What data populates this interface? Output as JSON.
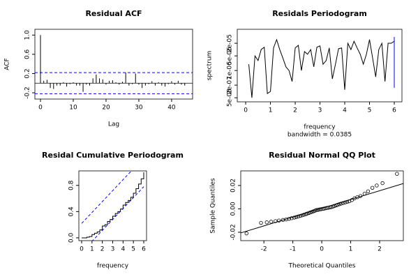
{
  "chart_data": [
    {
      "type": "bar",
      "title": "Residual ACF",
      "x_label": "Lag",
      "y_label": "ACF",
      "x": [
        0,
        1,
        2,
        3,
        4,
        5,
        6,
        7,
        8,
        9,
        10,
        11,
        12,
        13,
        14,
        15,
        16,
        17,
        18,
        19,
        20,
        21,
        22,
        23,
        24,
        25,
        26,
        27,
        28,
        29,
        30,
        31,
        32,
        33,
        34,
        35,
        36,
        37,
        38,
        39,
        40,
        41,
        42,
        43,
        44
      ],
      "values": [
        1,
        0.05,
        0.07,
        -0.1,
        -0.12,
        -0.05,
        -0.05,
        0.02,
        -0.07,
        -0.02,
        0.02,
        -0.05,
        -0.05,
        -0.18,
        -0.03,
        -0.05,
        0.1,
        0.18,
        0.1,
        0.08,
        -0.03,
        0.05,
        0.06,
        0.02,
        -0.03,
        0.03,
        0.22,
        -0.05,
        -0.02,
        0.2,
        -0.03,
        -0.1,
        -0.05,
        -0.02,
        0.04,
        -0.05,
        0.02,
        -0.05,
        -0.07,
        -0.02,
        0.04,
        -0.03,
        0.05,
        -0.03,
        -0.05
      ],
      "color": "#000000",
      "ci": [
        0.22,
        -0.22
      ],
      "ci_color": "#0000ff",
      "xlim": [
        -1.7,
        46.4
      ],
      "ylim": [
        -0.33,
        1.12
      ],
      "xticks": [
        0,
        10,
        20,
        30,
        40
      ],
      "yticks": [
        -0.2,
        0.2,
        0.6,
        {
          "value": 1,
          "label": "1.0"
        }
      ]
    },
    {
      "type": "line",
      "title": "Residals Periodogram",
      "x_label": "frequency",
      "subtitle": "bandwidth = 0.0385",
      "y_label": "spectrum",
      "log": true,
      "x": [
        0.125,
        0.25,
        0.375,
        0.5,
        0.625,
        0.75,
        0.875,
        1,
        1.125,
        1.25,
        1.375,
        1.5,
        1.625,
        1.75,
        1.875,
        2,
        2.125,
        2.25,
        2.375,
        2.5,
        2.625,
        2.75,
        2.875,
        3,
        3.125,
        3.25,
        3.375,
        3.5,
        3.625,
        3.75,
        3.875,
        4,
        4.125,
        4.25,
        4.375,
        4.5,
        4.625,
        4.75,
        4.875,
        5,
        5.125,
        5.25,
        5.375,
        5.5,
        5.625,
        5.75,
        5.875,
        6
      ],
      "values": [
        2e-06,
        5e-08,
        5e-06,
        3e-06,
        1e-05,
        1.3e-05,
        8e-08,
        1e-07,
        1.2e-05,
        3e-05,
        1e-05,
        4e-06,
        1.5e-06,
        1e-06,
        3e-07,
        1.2e-05,
        1.6e-05,
        1e-06,
        8e-06,
        6e-06,
        1e-05,
        1.5e-06,
        1.3e-05,
        1.5e-05,
        2e-06,
        3e-06,
        1.2e-05,
        4e-07,
        2e-06,
        1.1e-05,
        1.2e-05,
        1.2e-07,
        2e-05,
        1e-05,
        2.5e-05,
        1.2e-05,
        6e-06,
        2e-06,
        6e-06,
        3e-05,
        4e-06,
        5e-07,
        1e-05,
        2e-05,
        3e-07,
        2e-05,
        2e-05,
        2.5e-05
      ],
      "color": "#000000",
      "ci_bar": {
        "x": 6,
        "y": [
          1.5e-07,
          4e-05
        ]
      },
      "ci_color": "#0000ff",
      "xlim": [
        -0.34,
        6.31
      ],
      "ylim": [
        3.2e-08,
        9.3e-05
      ],
      "xticks": [
        0,
        1,
        2,
        3,
        4,
        5,
        6
      ],
      "yticks": [
        {
          "value": 5e-08,
          "label": "5e-08"
        },
        {
          "value": 2e-07,
          "label": "2e-07"
        },
        {
          "value": 1e-06,
          "label": "1e-06"
        },
        {
          "value": 5e-06,
          "label": "5e-06"
        },
        {
          "value": 2e-05,
          "label": "2e-05"
        }
      ]
    },
    {
      "type": "step",
      "title": "Residal Cumulative Periodogram",
      "x_label": "frequency",
      "x": [
        0,
        0.25,
        0.5,
        0.75,
        1,
        1.25,
        1.5,
        1.75,
        2,
        2.25,
        2.5,
        2.75,
        3,
        3.25,
        3.5,
        3.75,
        4,
        4.25,
        4.5,
        4.75,
        5,
        5.25,
        5.5,
        5.75,
        6
      ],
      "values": [
        0,
        0,
        0.01,
        0.02,
        0.05,
        0.07,
        0.09,
        0.12,
        0.18,
        0.2,
        0.25,
        0.28,
        0.33,
        0.37,
        0.4,
        0.44,
        0.5,
        0.54,
        0.57,
        0.62,
        0.68,
        0.75,
        0.82,
        0.9,
        1
      ],
      "color": "#000000",
      "band": 0.22,
      "band_color": "#0000ff",
      "xlim": [
        -0.27,
        6.27
      ],
      "ylim": [
        -0.043,
        1.021
      ],
      "xticks": [
        0,
        1,
        2,
        3,
        4,
        5,
        6
      ],
      "yticks": [
        {
          "value": 0,
          "label": "0.0"
        },
        0.4,
        0.8
      ]
    },
    {
      "type": "scatter",
      "title": "Residual Normal QQ Plot",
      "x_label": "Theoretical Quantiles",
      "y_label": "Sample Quantiles",
      "x": [
        -2.6,
        -2.1,
        -1.9,
        -1.75,
        -1.6,
        -1.48,
        -1.34,
        -1.23,
        -1.13,
        -1.04,
        -0.95,
        -0.88,
        -0.81,
        -0.74,
        -0.67,
        -0.61,
        -0.55,
        -0.5,
        -0.44,
        -0.39,
        -0.33,
        -0.28,
        -0.23,
        -0.18,
        -0.13,
        -0.08,
        -0.03,
        0.03,
        0.08,
        0.13,
        0.18,
        0.23,
        0.28,
        0.33,
        0.39,
        0.44,
        0.5,
        0.55,
        0.61,
        0.67,
        0.74,
        0.81,
        0.88,
        0.95,
        1.04,
        1.13,
        1.23,
        1.34,
        1.48,
        1.6,
        1.75,
        1.9,
        2.1,
        2.6
      ],
      "values": [
        -0.021,
        -0.012,
        -0.0115,
        -0.011,
        -0.0105,
        -0.01,
        -0.0095,
        -0.009,
        -0.0085,
        -0.008,
        -0.0075,
        -0.007,
        -0.0065,
        -0.006,
        -0.0055,
        -0.005,
        -0.0045,
        -0.004,
        -0.0035,
        -0.003,
        -0.0025,
        -0.002,
        -0.0015,
        -0.001,
        -0.0008,
        -0.0005,
        -0.0003,
        0,
        0.0002,
        0.0005,
        0.0008,
        0.001,
        0.0013,
        0.0015,
        0.002,
        0.0025,
        0.003,
        0.0035,
        0.004,
        0.0045,
        0.005,
        0.0055,
        0.006,
        0.0065,
        0.0075,
        0.009,
        0.01,
        0.011,
        0.013,
        0.015,
        0.018,
        0.02,
        0.022,
        0.03
      ],
      "color": "#000000",
      "ref_line": {
        "x": [
          -2.8,
          2.82
        ],
        "y": [
          -0.0206,
          0.0217
        ]
      },
      "xlim": [
        -2.8,
        2.82
      ],
      "ylim": [
        -0.0272,
        0.0325
      ],
      "xticks": [
        -2,
        -1,
        0,
        1,
        2
      ],
      "yticks": [
        {
          "value": -0.02,
          "label": "-0.02"
        },
        {
          "value": 0,
          "label": "0.00"
        },
        0.02
      ]
    }
  ]
}
